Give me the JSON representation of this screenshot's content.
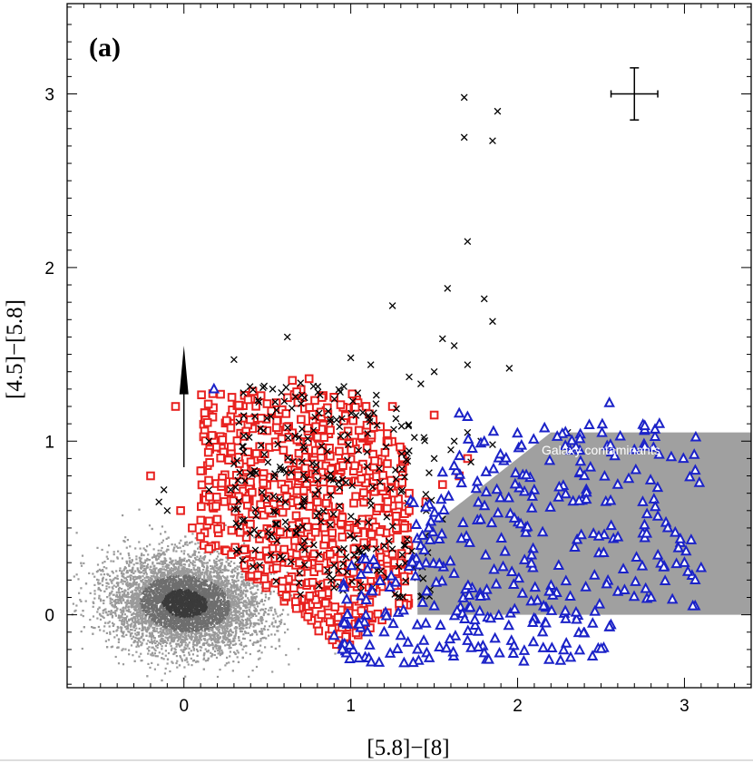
{
  "chart_data": {
    "type": "scatter",
    "panel_label": "(a)",
    "xlabel": "[5.8]−[8]",
    "ylabel": "[4.5]−[5.8]",
    "xlim": [
      -0.7,
      3.4
    ],
    "ylim": [
      -0.42,
      3.52
    ],
    "x_ticks": [
      0,
      1,
      2,
      3
    ],
    "y_ticks": [
      0,
      1,
      2,
      3
    ],
    "x_tick_labels": [
      "0",
      "1",
      "2",
      "3"
    ],
    "y_tick_labels": [
      "0",
      "1",
      "2",
      "3"
    ],
    "grid": false,
    "region": {
      "label": "Galaxy contaminants",
      "polygon": [
        [
          1.4,
          0
        ],
        [
          3.4,
          0
        ],
        [
          3.4,
          1.05
        ],
        [
          2.2,
          1.05
        ],
        [
          1.4,
          0.45
        ]
      ],
      "color": "#a0a0a0"
    },
    "error_bar": {
      "x": 2.7,
      "y": 3.0,
      "xerr": 0.14,
      "yerr": 0.15
    },
    "arrow": {
      "x": 0.0,
      "y_from": 1.0,
      "y_to": 1.55
    },
    "colors": {
      "yso_squares": "#e8211f",
      "contaminant_triangles": "#1b22c8",
      "crosses": "#000000",
      "field_stars": "#8c8c8c"
    },
    "series": [
      {
        "name": "field stars (grey density)",
        "marker": "dot",
        "description_points": "dense grey cloud",
        "center": [
          0.0,
          0.07
        ],
        "spread": [
          0.22,
          0.13
        ],
        "count": 6500
      },
      {
        "name": "red squares",
        "marker": "square",
        "points": [
          [
            -0.05,
            1.2
          ],
          [
            -0.2,
            0.8
          ],
          [
            -0.02,
            0.6
          ],
          [
            0.05,
            0.5
          ],
          [
            0.1,
            0.45
          ],
          [
            0.12,
            0.4
          ],
          [
            0.15,
            0.38
          ],
          [
            0.2,
            0.55
          ],
          [
            0.65,
            1.35
          ],
          [
            0.75,
            1.36
          ],
          [
            1.25,
            1.2
          ],
          [
            1.5,
            1.15
          ],
          [
            1.7,
            0.9
          ],
          [
            1.65,
            0.8
          ],
          [
            1.55,
            0.75
          ],
          [
            1.45,
            0.65
          ],
          [
            1.35,
            0.7
          ],
          [
            1.35,
            0.6
          ],
          [
            1.3,
            0.3
          ],
          [
            1.25,
            0.35
          ],
          [
            1.32,
            0.22
          ]
        ]
      },
      {
        "name": "blue triangles",
        "marker": "triangle",
        "points": [
          [
            0.18,
            1.3
          ],
          [
            2.55,
            1.22
          ],
          [
            2.85,
            1.1
          ],
          [
            2.7,
            0.95
          ],
          [
            2.4,
            0.8
          ],
          [
            2.6,
            0.75
          ],
          [
            2.75,
            0.65
          ],
          [
            2.9,
            0.5
          ],
          [
            3.0,
            0.3
          ],
          [
            3.1,
            0.27
          ],
          [
            3.05,
            0.05
          ],
          [
            2.8,
            0.1
          ],
          [
            2.45,
            -0.05
          ],
          [
            2.55,
            -0.07
          ],
          [
            2.15,
            -0.1
          ],
          [
            1.8,
            -0.22
          ],
          [
            1.7,
            -0.15
          ],
          [
            1.5,
            0.05
          ],
          [
            1.45,
            -0.05
          ],
          [
            1.4,
            -0.2
          ],
          [
            1.3,
            -0.12
          ],
          [
            1.2,
            -0.1
          ],
          [
            1.1,
            -0.1
          ],
          [
            1.05,
            -0.25
          ],
          [
            0.95,
            -0.2
          ],
          [
            0.9,
            -0.12
          ],
          [
            1.65,
            1.16
          ],
          [
            1.7,
            1.14
          ],
          [
            1.55,
            0.82
          ],
          [
            1.45,
            0.62
          ]
        ]
      },
      {
        "name": "black crosses",
        "marker": "cross",
        "points": [
          [
            1.68,
            2.98
          ],
          [
            1.88,
            2.9
          ],
          [
            1.68,
            2.75
          ],
          [
            1.85,
            2.73
          ],
          [
            1.7,
            2.15
          ],
          [
            1.58,
            1.88
          ],
          [
            1.8,
            1.82
          ],
          [
            1.25,
            1.78
          ],
          [
            1.85,
            1.69
          ],
          [
            0.62,
            1.6
          ],
          [
            1.55,
            1.59
          ],
          [
            1.62,
            1.55
          ],
          [
            0.3,
            1.47
          ],
          [
            1.0,
            1.48
          ],
          [
            1.12,
            1.44
          ],
          [
            1.7,
            1.44
          ],
          [
            1.95,
            1.42
          ],
          [
            1.35,
            1.37
          ],
          [
            1.5,
            1.4
          ],
          [
            1.42,
            1.33
          ],
          [
            0.15,
            1.0
          ],
          [
            0.35,
            0.97
          ],
          [
            0.3,
            0.87
          ],
          [
            1.7,
            1.05
          ],
          [
            1.62,
            1.0
          ],
          [
            1.78,
            1.0
          ],
          [
            1.85,
            0.98
          ],
          [
            1.72,
            0.88
          ],
          [
            0.28,
            0.72
          ],
          [
            -0.1,
            0.6
          ],
          [
            -0.12,
            0.72
          ],
          [
            -0.15,
            0.65
          ],
          [
            0.15,
            0.72
          ],
          [
            2.3,
            1.05
          ],
          [
            1.6,
            0.95
          ],
          [
            1.5,
            0.9
          ],
          [
            1.55,
            0.55
          ]
        ]
      }
    ],
    "dense_clusters": [
      {
        "series": "red squares",
        "description": "red squares concentrated between diagonal boundary and x≈1.3, y≈0–1.3",
        "x_range": [
          0.1,
          1.35
        ],
        "y_range": [
          -0.22,
          1.3
        ],
        "count": 720
      },
      {
        "series": "black crosses",
        "description": "black crosses interspersed with red squares",
        "x_range": [
          0.3,
          1.5
        ],
        "y_range": [
          0.1,
          1.35
        ],
        "count": 280
      },
      {
        "series": "blue triangles",
        "description": "blue triangles filling the galaxy contaminant region",
        "x_range": [
          0.95,
          3.1
        ],
        "y_range": [
          -0.28,
          1.2
        ],
        "count": 360
      }
    ]
  }
}
